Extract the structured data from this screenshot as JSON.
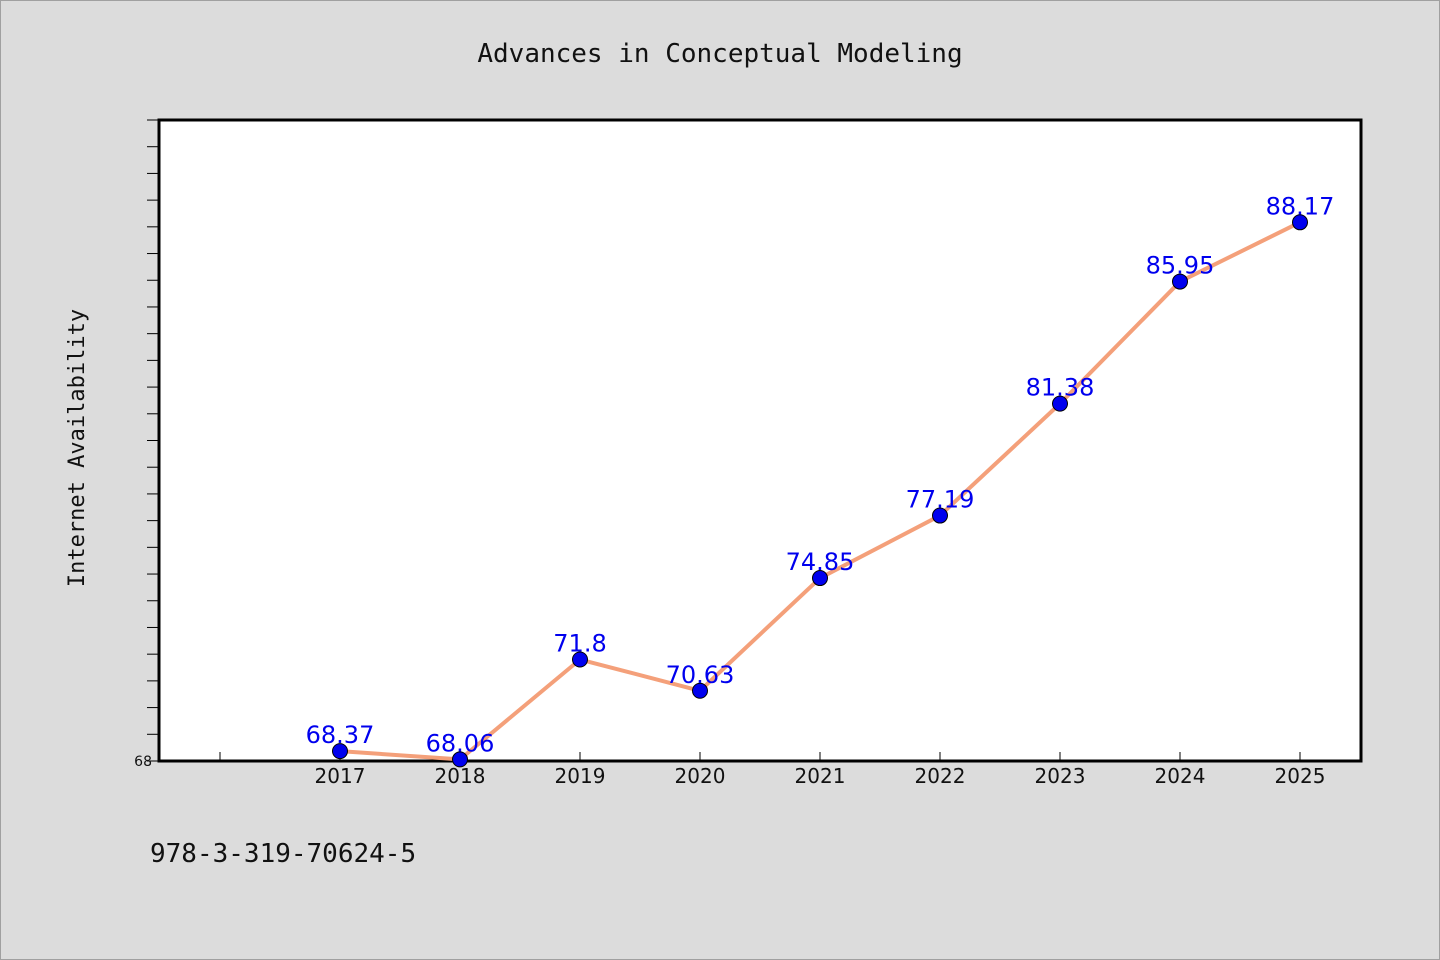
{
  "chart_data": {
    "type": "line",
    "title": "Advances in Conceptual Modeling",
    "ylabel": "Internet Availability",
    "xlabel": "",
    "categories": [
      "2017",
      "2018",
      "2019",
      "2020",
      "2021",
      "2022",
      "2023",
      "2024",
      "2025"
    ],
    "values": [
      68.37,
      68.06,
      71.8,
      70.63,
      74.85,
      77.19,
      81.38,
      85.95,
      88.17
    ],
    "data_labels": [
      "68.37",
      "68.06",
      "71.8",
      "70.63",
      "74.85",
      "77.19",
      "81.38",
      "85.95",
      "88.17"
    ],
    "ylim": [
      68,
      92
    ],
    "ytick_labels": [
      "68"
    ],
    "x_start_index": 1,
    "grid": false,
    "line_color": "#f4a07a",
    "marker_color": "#0000ee",
    "label_color": "#0000ee"
  },
  "footer": {
    "isbn": "978-3-319-70624-5"
  }
}
